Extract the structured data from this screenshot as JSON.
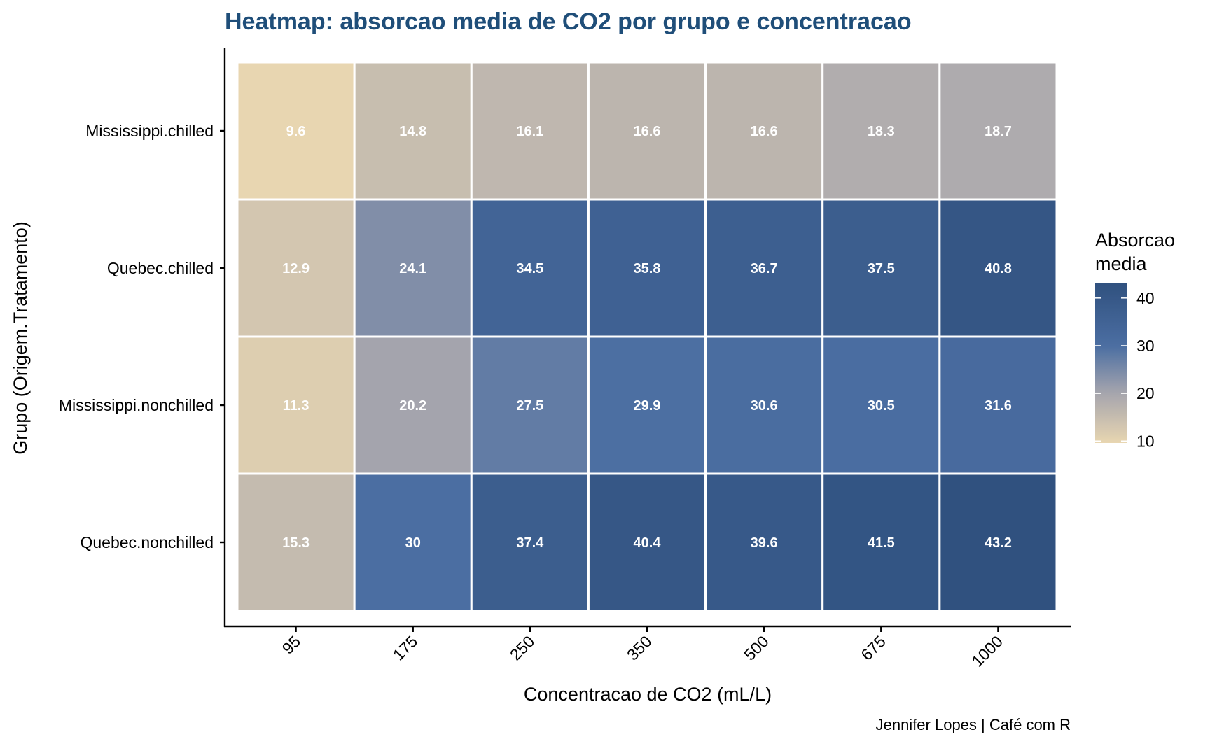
{
  "chart_data": {
    "type": "heatmap",
    "title": "Heatmap: absorcao media de CO2 por grupo e concentracao",
    "xlabel": "Concentracao de CO2 (mL/L)",
    "ylabel": "Grupo (Origem.Tratamento)",
    "caption": "Jennifer Lopes | Café com R",
    "x_categories": [
      "95",
      "175",
      "250",
      "350",
      "500",
      "675",
      "1000"
    ],
    "y_categories": [
      "Mississippi.chilled",
      "Quebec.chilled",
      "Mississippi.nonchilled",
      "Quebec.nonchilled"
    ],
    "values": [
      [
        9.6,
        14.8,
        16.1,
        16.6,
        16.6,
        18.3,
        18.7
      ],
      [
        12.9,
        24.1,
        34.5,
        35.8,
        36.7,
        37.5,
        40.8
      ],
      [
        11.3,
        20.2,
        27.5,
        29.9,
        30.6,
        30.5,
        31.6
      ],
      [
        15.3,
        30,
        37.4,
        40.4,
        39.6,
        41.5,
        43.2
      ]
    ],
    "value_labels": [
      [
        "9.6",
        "14.8",
        "16.1",
        "16.6",
        "16.6",
        "18.3",
        "18.7"
      ],
      [
        "12.9",
        "24.1",
        "34.5",
        "35.8",
        "36.7",
        "37.5",
        "40.8"
      ],
      [
        "11.3",
        "20.2",
        "27.5",
        "29.9",
        "30.6",
        "30.5",
        "31.6"
      ],
      [
        "15.3",
        "30",
        "37.4",
        "40.4",
        "39.6",
        "41.5",
        "43.2"
      ]
    ],
    "legend": {
      "title_lines": [
        "Absorcao",
        "media"
      ],
      "ticks": [
        10,
        20,
        30,
        40
      ],
      "tick_labels": [
        "10",
        "20",
        "30",
        "40"
      ],
      "range": [
        9.6,
        43.2
      ],
      "placement": "right"
    },
    "colors": {
      "title": "#1F4E79",
      "scale": [
        {
          "value": 9.6,
          "color": "#E8D6B1"
        },
        {
          "value": 20,
          "color": "#A6A5AD"
        },
        {
          "value": 30,
          "color": "#4B6EA2"
        },
        {
          "value": 43.2,
          "color": "#30517F"
        }
      ],
      "tile_text": "#FFFFFF"
    }
  }
}
